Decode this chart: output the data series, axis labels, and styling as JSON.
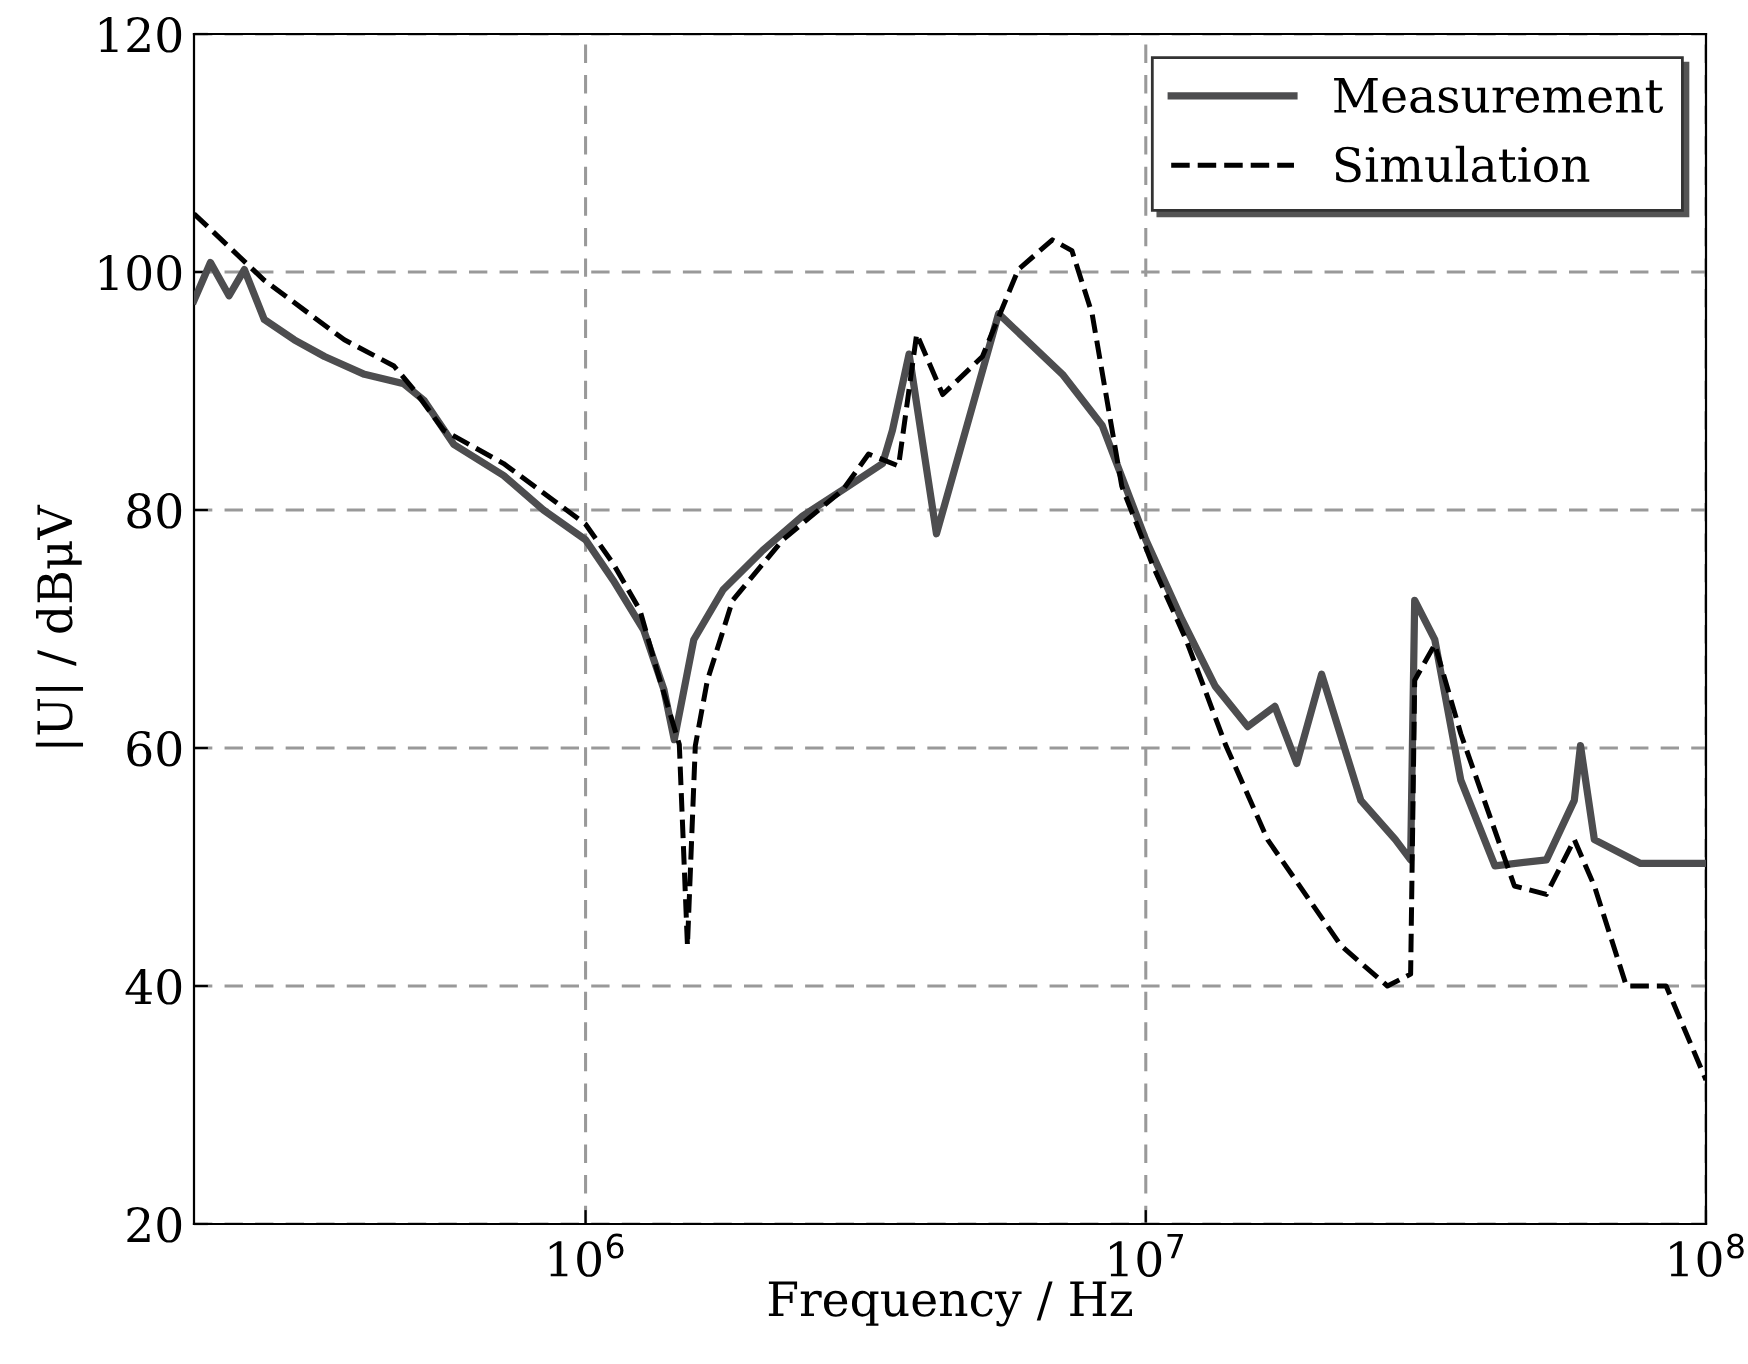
{
  "chart_data": {
    "type": "line",
    "xlabel": "Frequency / Hz",
    "ylabel": "|U| / dBμV",
    "log": "x",
    "xlim": [
      200000,
      100000000
    ],
    "xticks": [
      {
        "value": 1000000,
        "label": "10$^{6}$"
      },
      {
        "value": 10000000,
        "label": "10$^{7}$"
      },
      {
        "value": 100000000,
        "label": "10$^{8}$"
      }
    ],
    "ylim": [
      20,
      120
    ],
    "yticks": [
      20,
      40,
      60,
      80,
      100,
      120
    ],
    "grid": true,
    "legend": "top right",
    "marker": "none",
    "series": [
      {
        "name": "Measurement",
        "color": "#4d4d4f",
        "line_style": "solid",
        "x": [
          200000,
          214000,
          231000,
          246000,
          267000,
          302000,
          342000,
          403000,
          474000,
          515000,
          582000,
          714000,
          841000,
          1000000,
          1120000,
          1270000,
          1380000,
          1440000,
          1560000,
          1760000,
          2070000,
          2440000,
          2880000,
          3390000,
          3530000,
          3780000,
          4230000,
          5460000,
          7100000,
          8360000,
          10000000,
          11600000,
          13300000,
          15200000,
          17000000,
          18600000,
          20600000,
          24200000,
          27900000,
          29700000,
          30200000,
          32800000,
          36500000,
          42000000,
          51900000,
          58200000,
          59700000,
          63200000,
          76400000,
          100000000
        ],
        "values": [
          97.6,
          100.8,
          98.0,
          100.2,
          96.0,
          94.3,
          92.9,
          91.4,
          90.6,
          89.2,
          85.5,
          82.9,
          80.0,
          77.5,
          74.1,
          69.9,
          64.9,
          60.7,
          69.1,
          73.3,
          76.6,
          79.5,
          81.7,
          83.9,
          86.7,
          93.1,
          78.0,
          96.5,
          91.4,
          87.1,
          77.5,
          70.8,
          65.2,
          61.8,
          63.5,
          58.7,
          66.2,
          55.6,
          52.3,
          50.6,
          72.4,
          69.1,
          57.3,
          50.1,
          50.6,
          55.6,
          60.2,
          52.3,
          50.3,
          50.3
        ]
      },
      {
        "name": "Simulation",
        "color": "#000000",
        "line_style": "dashed",
        "x": [
          200000,
          267000,
          371000,
          455000,
          494000,
          558000,
          714000,
          877000,
          1000000,
          1120000,
          1250000,
          1340000,
          1470000,
          1520000,
          1570000,
          1650000,
          1830000,
          2250000,
          2880000,
          3200000,
          3620000,
          3900000,
          4340000,
          5110000,
          5920000,
          6810000,
          7380000,
          8020000,
          9060000,
          10300000,
          11800000,
          13900000,
          16500000,
          22300000,
          27000000,
          29700000,
          30200000,
          32800000,
          36500000,
          45500000,
          51900000,
          58200000,
          63200000,
          72100000,
          84900000,
          100000000
        ],
        "values": [
          104.9,
          99.3,
          94.3,
          92.1,
          90.1,
          86.7,
          83.9,
          80.8,
          78.8,
          75.5,
          71.6,
          66.6,
          60.3,
          43.4,
          60.2,
          65.7,
          72.4,
          77.5,
          81.7,
          84.7,
          83.7,
          94.8,
          89.7,
          92.9,
          100.2,
          102.7,
          101.8,
          96.5,
          82.0,
          75.3,
          69.1,
          60.2,
          52.3,
          43.4,
          40.0,
          41.0,
          65.7,
          68.7,
          61.2,
          48.4,
          47.7,
          52.3,
          48.4,
          40.0,
          40.0,
          32.1
        ]
      }
    ]
  }
}
